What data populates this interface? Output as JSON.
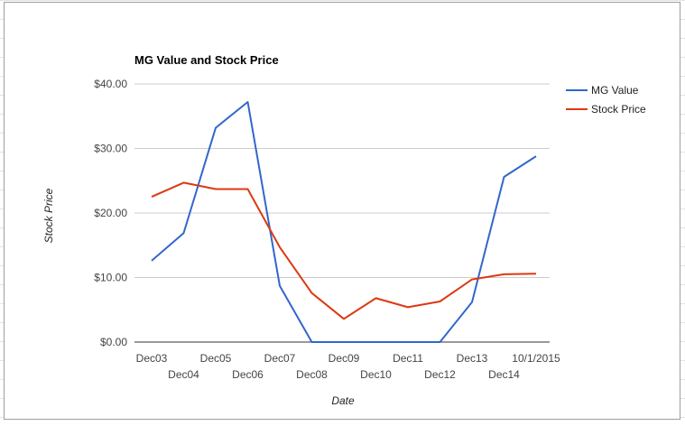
{
  "chart_data": {
    "type": "line",
    "title": "MG Value and Stock Price",
    "xlabel": "Date",
    "ylabel": "Stock Price",
    "categories": [
      "Dec03",
      "Dec04",
      "Dec05",
      "Dec06",
      "Dec07",
      "Dec08",
      "Dec09",
      "Dec10",
      "Dec11",
      "Dec12",
      "Dec13",
      "Dec14",
      "10/1/2015"
    ],
    "series": [
      {
        "name": "MG Value",
        "color": "#3366cc",
        "values": [
          12.6,
          16.9,
          33.2,
          37.2,
          8.7,
          0,
          0,
          0,
          0,
          0,
          6.2,
          25.6,
          28.8
        ]
      },
      {
        "name": "Stock Price",
        "color": "#dc3912",
        "values": [
          22.5,
          24.7,
          23.7,
          23.7,
          14.7,
          7.6,
          3.6,
          6.8,
          5.4,
          6.3,
          9.7,
          10.5,
          10.6
        ]
      }
    ],
    "ylim": [
      0,
      40
    ],
    "yticks": [
      0,
      10,
      20,
      30,
      40
    ],
    "ytick_labels": [
      "$0.00",
      "$10.00",
      "$20.00",
      "$30.00",
      "$40.00"
    ],
    "grid": true,
    "legend": "right"
  }
}
